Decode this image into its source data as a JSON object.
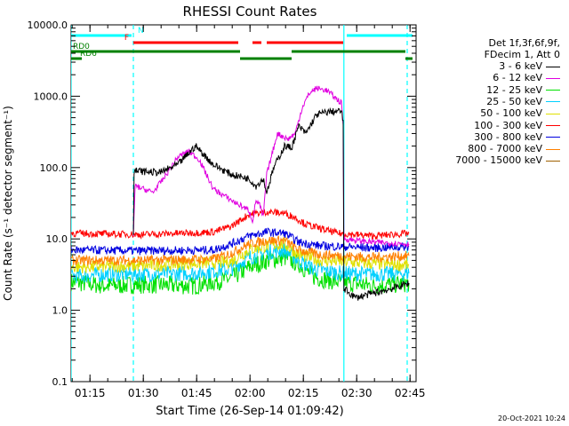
{
  "chart_data": {
    "type": "line",
    "title": "RHESSI Count Rates",
    "xlabel": "Start Time (26-Sep-14 01:09:42)",
    "ylabel": "Count Rate (s⁻¹ detector segment⁻¹)",
    "ylog": true,
    "ylim": [
      0.1,
      10000
    ],
    "xlim_minutes": [
      0,
      97
    ],
    "xticks": [
      {
        "label": "01:15",
        "min": 5.3
      },
      {
        "label": "01:30",
        "min": 20.3
      },
      {
        "label": "01:45",
        "min": 35.3
      },
      {
        "label": "02:00",
        "min": 50.3
      },
      {
        "label": "02:15",
        "min": 65.3
      },
      {
        "label": "02:30",
        "min": 80.3
      },
      {
        "label": "02:45",
        "min": 95.3
      }
    ],
    "yticks": [
      {
        "label": "0.1",
        "v": 0.1
      },
      {
        "label": "1.0",
        "v": 1
      },
      {
        "label": "10.0",
        "v": 10
      },
      {
        "label": "100.0",
        "v": 100
      },
      {
        "label": "1000.0",
        "v": 1000
      },
      {
        "label": "10000.0",
        "v": 10000
      }
    ],
    "legend_header": [
      "Det 1f,3f,6f,9f,",
      "FDecim 1, Att 0"
    ],
    "series": [
      {
        "name": "3 - 6 keV",
        "color": "#000000",
        "values": [
          [
            17.5,
            12
          ],
          [
            17.7,
            90
          ],
          [
            25,
            85
          ],
          [
            30,
            110
          ],
          [
            35,
            200
          ],
          [
            40,
            110
          ],
          [
            45,
            80
          ],
          [
            50,
            70
          ],
          [
            52,
            55
          ],
          [
            54,
            70
          ],
          [
            55,
            45
          ],
          [
            57,
            100
          ],
          [
            60,
            200
          ],
          [
            62,
            190
          ],
          [
            64,
            380
          ],
          [
            66,
            300
          ],
          [
            69,
            550
          ],
          [
            72,
            600
          ],
          [
            76,
            620
          ],
          [
            76.5,
            420
          ],
          [
            76.7,
            2.0
          ],
          [
            80,
            1.5
          ],
          [
            90,
            2.0
          ],
          [
            95,
            2.4
          ]
        ]
      },
      {
        "name": "6 - 12 keV",
        "color": "#e000e0",
        "values": [
          [
            17.5,
            11
          ],
          [
            18,
            55
          ],
          [
            23,
            45
          ],
          [
            26,
            70
          ],
          [
            30,
            140
          ],
          [
            33,
            170
          ],
          [
            36,
            130
          ],
          [
            40,
            50
          ],
          [
            45,
            35
          ],
          [
            50,
            25
          ],
          [
            51,
            18
          ],
          [
            52,
            35
          ],
          [
            53,
            30
          ],
          [
            54,
            20
          ],
          [
            55,
            80
          ],
          [
            58,
            300
          ],
          [
            61,
            250
          ],
          [
            63,
            300
          ],
          [
            65,
            700
          ],
          [
            67,
            1100
          ],
          [
            69,
            1300
          ],
          [
            72,
            1200
          ],
          [
            76,
            800
          ],
          [
            76.5,
            400
          ],
          [
            76.7,
            10
          ],
          [
            85,
            9
          ],
          [
            95,
            8.5
          ]
        ]
      },
      {
        "name": "12 - 25 keV",
        "color": "#00e000",
        "values": [
          [
            0,
            2.5
          ],
          [
            10,
            2.2
          ],
          [
            20,
            2.3
          ],
          [
            35,
            2.2
          ],
          [
            45,
            2.8
          ],
          [
            50,
            4
          ],
          [
            55,
            5
          ],
          [
            60,
            5.5
          ],
          [
            64,
            4.5
          ],
          [
            68,
            3
          ],
          [
            70,
            2.8
          ],
          [
            73,
            2.6
          ],
          [
            76,
            2.5
          ],
          [
            85,
            2.2
          ],
          [
            95,
            2.4
          ]
        ]
      },
      {
        "name": "25 - 50 keV",
        "color": "#00d0ff",
        "values": [
          [
            0,
            3
          ],
          [
            10,
            3.2
          ],
          [
            20,
            3.2
          ],
          [
            35,
            3.3
          ],
          [
            45,
            3.8
          ],
          [
            50,
            5.5
          ],
          [
            55,
            6.5
          ],
          [
            60,
            7
          ],
          [
            64,
            5
          ],
          [
            68,
            3.8
          ],
          [
            76,
            3.3
          ],
          [
            85,
            3.2
          ],
          [
            95,
            3.3
          ]
        ]
      },
      {
        "name": "50 - 100 keV",
        "color": "#e0e000",
        "values": [
          [
            0,
            4
          ],
          [
            20,
            4.2
          ],
          [
            45,
            4.8
          ],
          [
            50,
            7
          ],
          [
            55,
            8
          ],
          [
            60,
            8.5
          ],
          [
            64,
            6
          ],
          [
            70,
            5
          ],
          [
            85,
            4.5
          ],
          [
            95,
            4.3
          ]
        ]
      },
      {
        "name": "100 - 300 keV",
        "color": "#ff0000",
        "values": [
          [
            0,
            12
          ],
          [
            20,
            11.5
          ],
          [
            40,
            12.5
          ],
          [
            45,
            15
          ],
          [
            50,
            22
          ],
          [
            55,
            24
          ],
          [
            60,
            23
          ],
          [
            63,
            20
          ],
          [
            66,
            16
          ],
          [
            70,
            14
          ],
          [
            75,
            12
          ],
          [
            85,
            11
          ],
          [
            95,
            12
          ]
        ]
      },
      {
        "name": "300 - 800 keV",
        "color": "#0000e0",
        "values": [
          [
            0,
            7
          ],
          [
            20,
            6.8
          ],
          [
            40,
            7
          ],
          [
            45,
            8.5
          ],
          [
            50,
            11
          ],
          [
            55,
            12.5
          ],
          [
            60,
            12
          ],
          [
            64,
            9
          ],
          [
            70,
            8
          ],
          [
            85,
            7.5
          ],
          [
            95,
            7.8
          ]
        ]
      },
      {
        "name": "800 - 7000 keV",
        "color": "#ff8000",
        "values": [
          [
            0,
            5
          ],
          [
            20,
            5
          ],
          [
            40,
            5.2
          ],
          [
            45,
            6.3
          ],
          [
            50,
            8.5
          ],
          [
            55,
            9.5
          ],
          [
            60,
            9.5
          ],
          [
            64,
            7
          ],
          [
            70,
            6
          ],
          [
            85,
            5.5
          ],
          [
            95,
            5.8
          ]
        ]
      },
      {
        "name": "7000 - 15000 keV",
        "color": "#a06000",
        "values": []
      }
    ],
    "flags": [
      {
        "label": "N",
        "color": "#00ffff",
        "segments": [
          [
            0,
            17
          ],
          [
            77.5,
            96
          ]
        ]
      },
      {
        "label": "F",
        "color": "#ff0000",
        "segments": [
          [
            17.5,
            47
          ],
          [
            51,
            53.5
          ],
          [
            55,
            76.5
          ]
        ]
      },
      {
        "label": "RD0",
        "color": "#008000",
        "segments": [
          [
            0,
            47.5
          ],
          [
            62,
            94
          ]
        ]
      },
      {
        "label": "RD6",
        "color": "#008000",
        "segments": [
          [
            0,
            3
          ],
          [
            47.5,
            62
          ],
          [
            94,
            96
          ]
        ]
      }
    ],
    "vlines": [
      {
        "min": 0,
        "color": "#00ffff",
        "style": "solid"
      },
      {
        "min": 17.5,
        "color": "#00ffff",
        "style": "dashed"
      },
      {
        "min": 76.7,
        "color": "#00ffff",
        "style": "solid"
      },
      {
        "min": 94.5,
        "color": "#00ffff",
        "style": "dashed"
      }
    ],
    "timestamp": "20-Oct-2021 10:24"
  }
}
